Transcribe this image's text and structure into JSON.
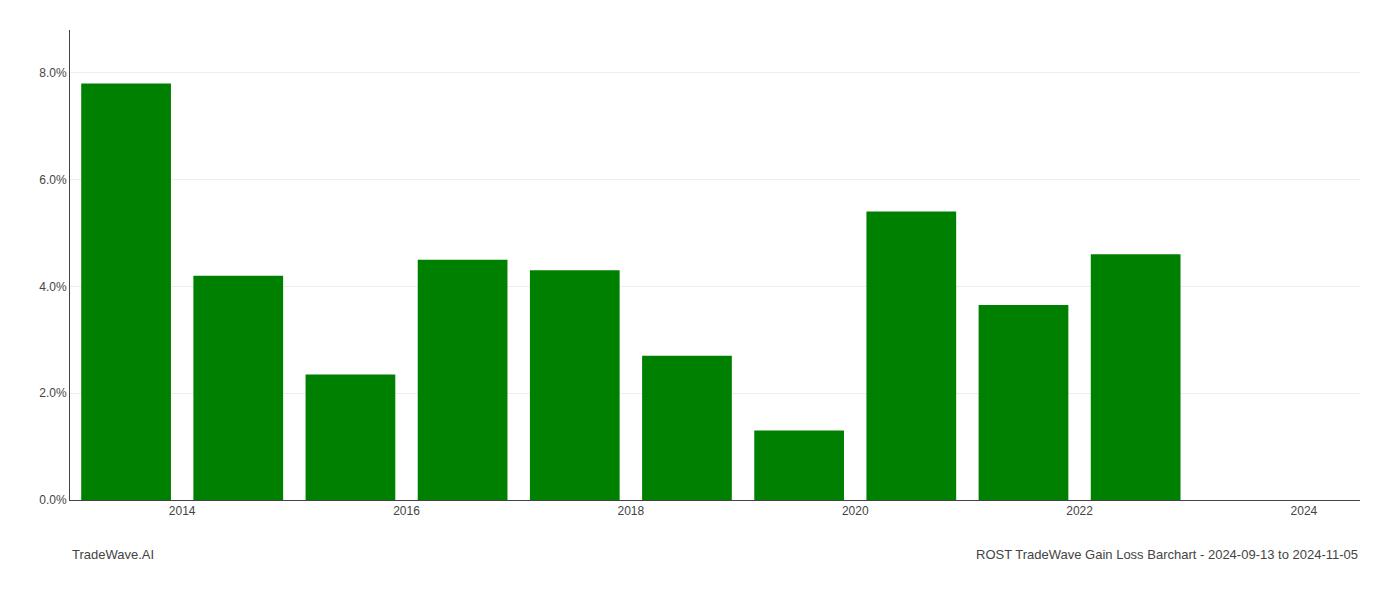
{
  "chart_data": {
    "type": "bar",
    "title": "ROST TradeWave Gain Loss Barchart - 2024-09-13 to 2024-11-05",
    "annotations": [
      "TradeWave.AI"
    ],
    "x": [
      2013.5,
      2014.5,
      2015.5,
      2016.5,
      2017.5,
      2018.5,
      2019.5,
      2020.5,
      2021.5,
      2022.5
    ],
    "values": [
      0.078,
      0.042,
      0.0235,
      0.045,
      0.043,
      0.027,
      0.013,
      0.054,
      0.0365,
      0.046
    ],
    "color": "#008000",
    "xlim": [
      2013.0,
      2024.5
    ],
    "xticks": [
      2014,
      2016,
      2018,
      2020,
      2022,
      2024
    ],
    "ylim": [
      0,
      0.088
    ],
    "yticks": [
      {
        "value": 0.0,
        "label": "0.0%"
      },
      {
        "value": 0.02,
        "label": "2.0%"
      },
      {
        "value": 0.04,
        "label": "4.0%"
      },
      {
        "value": 0.06,
        "label": "6.0%"
      },
      {
        "value": 0.08,
        "label": "8.0%"
      }
    ],
    "grid": true
  }
}
